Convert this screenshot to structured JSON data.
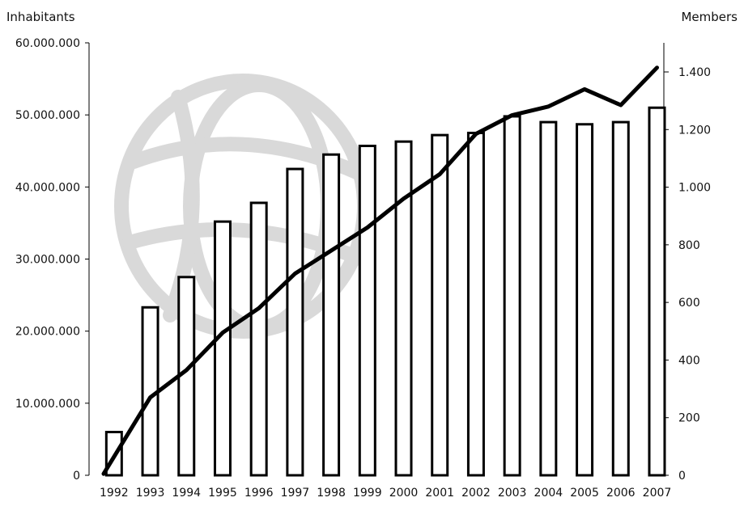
{
  "chart_data": {
    "type": "bar+line",
    "title": "",
    "categories": [
      "1992",
      "1993",
      "1994",
      "1995",
      "1996",
      "1997",
      "1998",
      "1999",
      "2000",
      "2001",
      "2002",
      "2003",
      "2004",
      "2005",
      "2006",
      "2007"
    ],
    "y_left": {
      "label": "Inhabitants",
      "lim": [
        0,
        60000000
      ],
      "ticks": [
        0,
        10000000,
        20000000,
        30000000,
        40000000,
        50000000,
        60000000
      ],
      "tick_labels": [
        "0",
        "10.000.000",
        "20.000.000",
        "30.000.000",
        "40.000.000",
        "50.000.000",
        "60.000.000"
      ]
    },
    "y_right": {
      "label": "Members",
      "lim": [
        0,
        1500
      ],
      "ticks": [
        0,
        200,
        400,
        600,
        800,
        1000,
        1200,
        1400
      ],
      "tick_labels": [
        "0",
        "200",
        "400",
        "600",
        "800",
        "1.000",
        "1.200",
        "1.400"
      ]
    },
    "series": [
      {
        "type": "bar",
        "axis": "left",
        "values": [
          6000000,
          23300000,
          27500000,
          35200000,
          37800000,
          42500000,
          44500000,
          45700000,
          46300000,
          47200000,
          47500000,
          49800000,
          49000000,
          48700000,
          49000000,
          51000000
        ]
      },
      {
        "type": "line",
        "axis": "right",
        "values": [
          5,
          270,
          365,
          495,
          580,
          700,
          780,
          860,
          960,
          1045,
          1185,
          1250,
          1280,
          1340,
          1285,
          1415
        ]
      }
    ],
    "grid": false,
    "legend": "none",
    "colors": {
      "bar_fill": "#ffffff",
      "bar_stroke": "#000000",
      "line": "#000000",
      "watermark": "#d9d9d9"
    }
  }
}
